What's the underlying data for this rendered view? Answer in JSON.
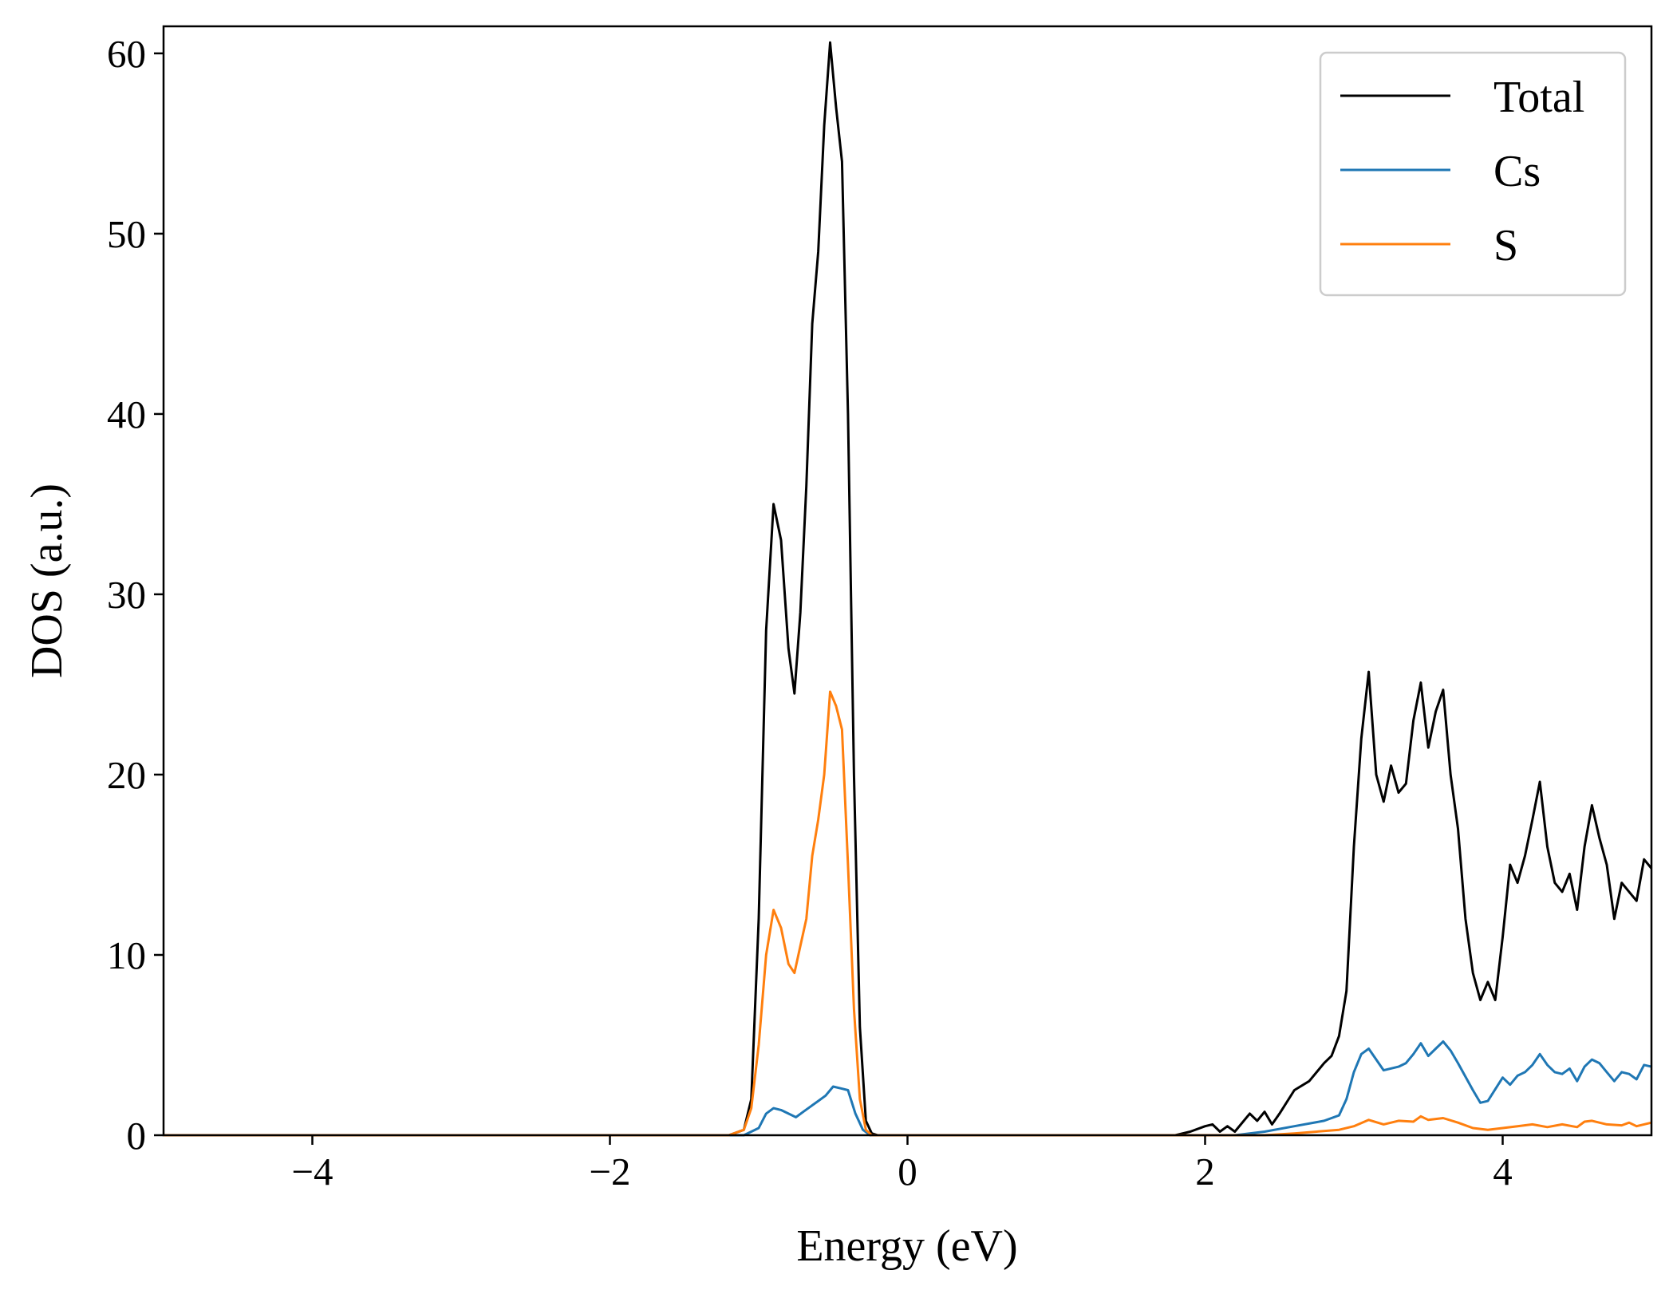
{
  "chart_data": {
    "type": "line",
    "title": "",
    "xlabel": "Energy (eV)",
    "ylabel": "DOS (a.u.)",
    "xlim": [
      -5,
      5
    ],
    "ylim": [
      0,
      61.5
    ],
    "xticks": [
      -4,
      -2,
      0,
      2,
      4
    ],
    "xtick_labels": [
      "−4",
      "−2",
      "0",
      "2",
      "4"
    ],
    "yticks": [
      0,
      10,
      20,
      30,
      40,
      50,
      60
    ],
    "ytick_labels": [
      "0",
      "10",
      "20",
      "30",
      "40",
      "50",
      "60"
    ],
    "grid": false,
    "legend": "top-right",
    "series": [
      {
        "name": "Total",
        "color": "#000000",
        "points": [
          [
            -5,
            0
          ],
          [
            -1.2,
            0
          ],
          [
            -1.1,
            0.3
          ],
          [
            -1.05,
            2
          ],
          [
            -1.0,
            12
          ],
          [
            -0.95,
            28
          ],
          [
            -0.9,
            35
          ],
          [
            -0.85,
            33
          ],
          [
            -0.8,
            27
          ],
          [
            -0.76,
            24.5
          ],
          [
            -0.72,
            29
          ],
          [
            -0.68,
            36
          ],
          [
            -0.64,
            45
          ],
          [
            -0.6,
            49
          ],
          [
            -0.56,
            56
          ],
          [
            -0.52,
            60.6
          ],
          [
            -0.48,
            57
          ],
          [
            -0.44,
            54
          ],
          [
            -0.4,
            40
          ],
          [
            -0.36,
            20
          ],
          [
            -0.32,
            6
          ],
          [
            -0.28,
            0.8
          ],
          [
            -0.24,
            0.1
          ],
          [
            -0.2,
            0
          ],
          [
            1.8,
            0
          ],
          [
            1.9,
            0.2
          ],
          [
            2.0,
            0.5
          ],
          [
            2.05,
            0.6
          ],
          [
            2.1,
            0.2
          ],
          [
            2.15,
            0.5
          ],
          [
            2.2,
            0.2
          ],
          [
            2.3,
            1.2
          ],
          [
            2.35,
            0.8
          ],
          [
            2.4,
            1.3
          ],
          [
            2.45,
            0.6
          ],
          [
            2.5,
            1.2
          ],
          [
            2.6,
            2.5
          ],
          [
            2.7,
            3.0
          ],
          [
            2.8,
            4.0
          ],
          [
            2.85,
            4.4
          ],
          [
            2.9,
            5.5
          ],
          [
            2.95,
            8
          ],
          [
            3.0,
            16
          ],
          [
            3.05,
            22
          ],
          [
            3.1,
            25.7
          ],
          [
            3.15,
            20
          ],
          [
            3.2,
            18.5
          ],
          [
            3.25,
            20.5
          ],
          [
            3.3,
            19
          ],
          [
            3.35,
            19.5
          ],
          [
            3.4,
            23
          ],
          [
            3.45,
            25.1
          ],
          [
            3.5,
            21.5
          ],
          [
            3.55,
            23.5
          ],
          [
            3.6,
            24.7
          ],
          [
            3.65,
            20
          ],
          [
            3.7,
            17
          ],
          [
            3.75,
            12
          ],
          [
            3.8,
            9
          ],
          [
            3.85,
            7.5
          ],
          [
            3.9,
            8.5
          ],
          [
            3.95,
            7.5
          ],
          [
            4.0,
            11
          ],
          [
            4.05,
            15
          ],
          [
            4.1,
            14
          ],
          [
            4.15,
            15.5
          ],
          [
            4.2,
            17.5
          ],
          [
            4.25,
            19.6
          ],
          [
            4.3,
            16
          ],
          [
            4.35,
            14
          ],
          [
            4.4,
            13.5
          ],
          [
            4.45,
            14.5
          ],
          [
            4.5,
            12.5
          ],
          [
            4.55,
            16
          ],
          [
            4.6,
            18.3
          ],
          [
            4.65,
            16.5
          ],
          [
            4.7,
            15
          ],
          [
            4.75,
            12
          ],
          [
            4.8,
            14
          ],
          [
            4.85,
            13.5
          ],
          [
            4.9,
            13
          ],
          [
            4.95,
            15.3
          ],
          [
            5.0,
            14.8
          ]
        ]
      },
      {
        "name": "Cs",
        "color": "#1f77b4",
        "points": [
          [
            -5,
            0
          ],
          [
            -1.1,
            0
          ],
          [
            -1.0,
            0.4
          ],
          [
            -0.95,
            1.2
          ],
          [
            -0.9,
            1.5
          ],
          [
            -0.85,
            1.4
          ],
          [
            -0.8,
            1.2
          ],
          [
            -0.75,
            1.0
          ],
          [
            -0.7,
            1.3
          ],
          [
            -0.65,
            1.6
          ],
          [
            -0.6,
            1.9
          ],
          [
            -0.55,
            2.2
          ],
          [
            -0.5,
            2.7
          ],
          [
            -0.45,
            2.6
          ],
          [
            -0.4,
            2.5
          ],
          [
            -0.35,
            1.2
          ],
          [
            -0.3,
            0.3
          ],
          [
            -0.25,
            0
          ],
          [
            2.2,
            0
          ],
          [
            2.4,
            0.2
          ],
          [
            2.6,
            0.5
          ],
          [
            2.8,
            0.8
          ],
          [
            2.9,
            1.1
          ],
          [
            2.95,
            2
          ],
          [
            3.0,
            3.5
          ],
          [
            3.05,
            4.5
          ],
          [
            3.1,
            4.8
          ],
          [
            3.2,
            3.6
          ],
          [
            3.3,
            3.8
          ],
          [
            3.35,
            4.0
          ],
          [
            3.4,
            4.5
          ],
          [
            3.45,
            5.1
          ],
          [
            3.5,
            4.4
          ],
          [
            3.55,
            4.8
          ],
          [
            3.6,
            5.2
          ],
          [
            3.65,
            4.7
          ],
          [
            3.7,
            4.0
          ],
          [
            3.8,
            2.5
          ],
          [
            3.85,
            1.8
          ],
          [
            3.9,
            1.9
          ],
          [
            4.0,
            3.2
          ],
          [
            4.05,
            2.8
          ],
          [
            4.1,
            3.3
          ],
          [
            4.15,
            3.5
          ],
          [
            4.2,
            3.9
          ],
          [
            4.25,
            4.5
          ],
          [
            4.3,
            3.9
          ],
          [
            4.35,
            3.5
          ],
          [
            4.4,
            3.4
          ],
          [
            4.45,
            3.7
          ],
          [
            4.5,
            3.0
          ],
          [
            4.55,
            3.8
          ],
          [
            4.6,
            4.2
          ],
          [
            4.65,
            4.0
          ],
          [
            4.7,
            3.5
          ],
          [
            4.75,
            3.0
          ],
          [
            4.8,
            3.5
          ],
          [
            4.85,
            3.4
          ],
          [
            4.9,
            3.1
          ],
          [
            4.95,
            3.9
          ],
          [
            5.0,
            3.8
          ]
        ]
      },
      {
        "name": "S",
        "color": "#ff7f0e",
        "points": [
          [
            -5,
            0
          ],
          [
            -1.2,
            0
          ],
          [
            -1.1,
            0.3
          ],
          [
            -1.05,
            1.5
          ],
          [
            -1.0,
            5
          ],
          [
            -0.95,
            10
          ],
          [
            -0.9,
            12.5
          ],
          [
            -0.85,
            11.5
          ],
          [
            -0.8,
            9.5
          ],
          [
            -0.76,
            9.0
          ],
          [
            -0.72,
            10.5
          ],
          [
            -0.68,
            12
          ],
          [
            -0.64,
            15.5
          ],
          [
            -0.6,
            17.5
          ],
          [
            -0.56,
            20
          ],
          [
            -0.52,
            24.6
          ],
          [
            -0.48,
            23.8
          ],
          [
            -0.44,
            22.5
          ],
          [
            -0.4,
            15
          ],
          [
            -0.36,
            7
          ],
          [
            -0.32,
            2
          ],
          [
            -0.28,
            0.3
          ],
          [
            -0.24,
            0
          ],
          [
            2.4,
            0
          ],
          [
            2.6,
            0.1
          ],
          [
            2.9,
            0.3
          ],
          [
            3.0,
            0.5
          ],
          [
            3.1,
            0.85
          ],
          [
            3.2,
            0.6
          ],
          [
            3.3,
            0.8
          ],
          [
            3.4,
            0.75
          ],
          [
            3.45,
            1.05
          ],
          [
            3.5,
            0.85
          ],
          [
            3.6,
            0.95
          ],
          [
            3.7,
            0.7
          ],
          [
            3.8,
            0.4
          ],
          [
            3.9,
            0.3
          ],
          [
            4.0,
            0.4
          ],
          [
            4.1,
            0.5
          ],
          [
            4.2,
            0.6
          ],
          [
            4.3,
            0.45
          ],
          [
            4.4,
            0.6
          ],
          [
            4.5,
            0.45
          ],
          [
            4.55,
            0.75
          ],
          [
            4.6,
            0.8
          ],
          [
            4.7,
            0.6
          ],
          [
            4.8,
            0.55
          ],
          [
            4.85,
            0.7
          ],
          [
            4.9,
            0.5
          ],
          [
            5.0,
            0.7
          ]
        ]
      }
    ]
  }
}
